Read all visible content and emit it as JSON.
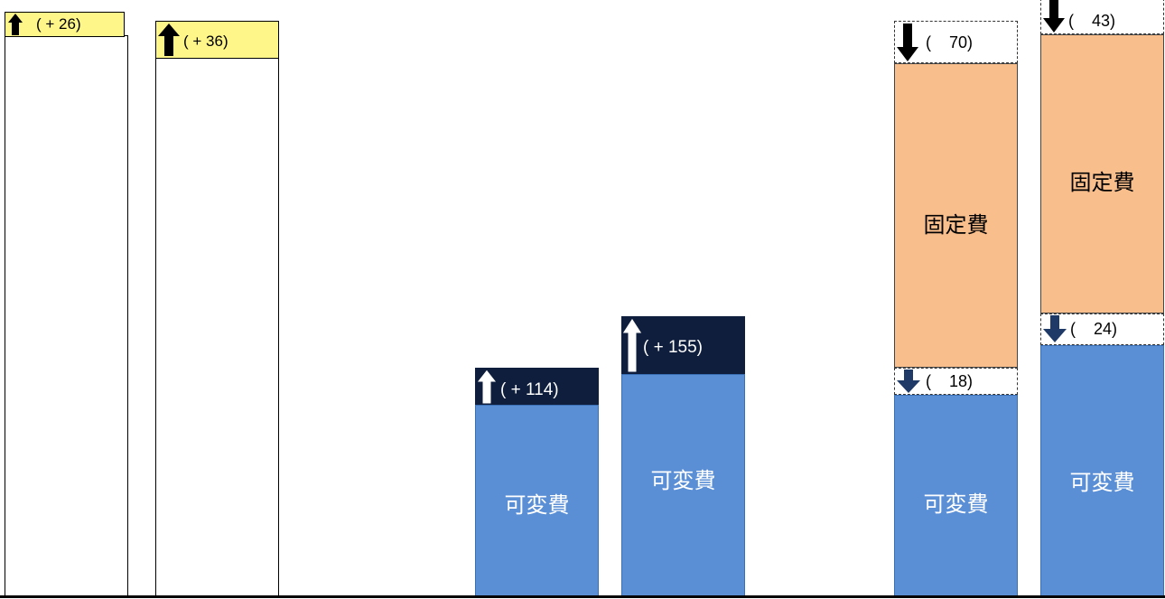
{
  "chart_data": {
    "type": "bar",
    "title": "",
    "xlabel": "",
    "ylabel": "",
    "grid": false,
    "bars": [
      {
        "id": 1,
        "change": {
          "label": "( + 26)",
          "direction": "up",
          "value": 26
        }
      },
      {
        "id": 2,
        "change": {
          "label": "( + 36)",
          "direction": "up",
          "value": 36
        }
      },
      {
        "id": 3,
        "segments": [
          {
            "name": "可変費"
          }
        ],
        "change": {
          "label": "( + 114)",
          "direction": "up",
          "value": 114
        }
      },
      {
        "id": 4,
        "segments": [
          {
            "name": "可変費"
          }
        ],
        "change": {
          "label": "( + 155)",
          "direction": "up",
          "value": 155
        }
      },
      {
        "id": 5,
        "segments": [
          {
            "name": "可変費"
          },
          {
            "name": "固定費"
          }
        ],
        "changes": [
          {
            "label": "(    18)",
            "direction": "down",
            "value": 18
          },
          {
            "label": "(    70)",
            "direction": "down",
            "value": 70
          }
        ]
      },
      {
        "id": 6,
        "segments": [
          {
            "name": "可変費"
          },
          {
            "name": "固定費"
          }
        ],
        "changes": [
          {
            "label": "(    24)",
            "direction": "down",
            "value": 24
          },
          {
            "label": "(    43)",
            "direction": "down",
            "value": 43
          }
        ]
      }
    ]
  },
  "colors": {
    "variable": "#5a8fd6",
    "fixed": "#f8be8c",
    "navy": "#0e1e3c",
    "yellow": "#fff68a"
  }
}
